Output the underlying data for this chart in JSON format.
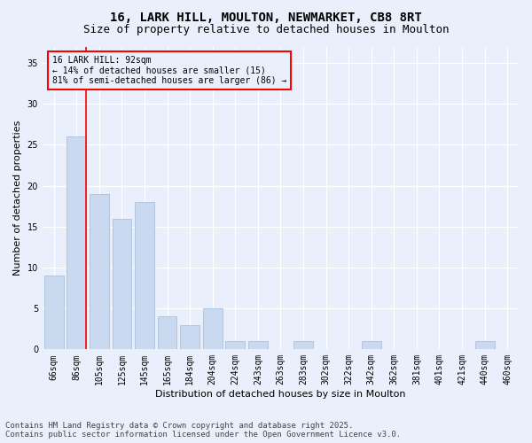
{
  "title_line1": "16, LARK HILL, MOULTON, NEWMARKET, CB8 8RT",
  "title_line2": "Size of property relative to detached houses in Moulton",
  "xlabel": "Distribution of detached houses by size in Moulton",
  "ylabel": "Number of detached properties",
  "categories": [
    "66sqm",
    "86sqm",
    "105sqm",
    "125sqm",
    "145sqm",
    "165sqm",
    "184sqm",
    "204sqm",
    "224sqm",
    "243sqm",
    "263sqm",
    "283sqm",
    "302sqm",
    "322sqm",
    "342sqm",
    "362sqm",
    "381sqm",
    "401sqm",
    "421sqm",
    "440sqm",
    "460sqm"
  ],
  "values": [
    9,
    26,
    19,
    16,
    18,
    4,
    3,
    5,
    1,
    1,
    0,
    1,
    0,
    0,
    1,
    0,
    0,
    0,
    0,
    1,
    0
  ],
  "bar_color": "#c9d9f0",
  "bar_edge_color": "#a0b8d8",
  "red_line_x": 1.42,
  "ylim": [
    0,
    37
  ],
  "yticks": [
    0,
    5,
    10,
    15,
    20,
    25,
    30,
    35
  ],
  "annotation_title": "16 LARK HILL: 92sqm",
  "annotation_line1": "← 14% of detached houses are smaller (15)",
  "annotation_line2": "81% of semi-detached houses are larger (86) →",
  "footer_line1": "Contains HM Land Registry data © Crown copyright and database right 2025.",
  "footer_line2": "Contains public sector information licensed under the Open Government Licence v3.0.",
  "background_color": "#eaf0fb",
  "grid_color": "#ffffff",
  "title_fontsize": 10,
  "subtitle_fontsize": 9,
  "axis_label_fontsize": 8,
  "tick_fontsize": 7,
  "footer_fontsize": 6.5,
  "annotation_fontsize": 7
}
